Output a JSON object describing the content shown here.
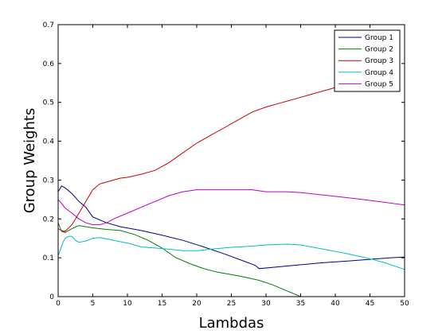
{
  "chart_data": {
    "type": "line",
    "title": "",
    "xlabel": "Lambdas",
    "ylabel": "Group Weights",
    "xlim": [
      0,
      50
    ],
    "ylim": [
      0,
      0.7
    ],
    "xticks": [
      0,
      5,
      10,
      15,
      20,
      25,
      30,
      35,
      40,
      45,
      50
    ],
    "yticks": [
      0,
      0.1,
      0.2,
      0.3,
      0.4,
      0.5,
      0.6,
      0.7
    ],
    "xtick_labels": [
      "0",
      "5",
      "10",
      "15",
      "20",
      "25",
      "30",
      "35",
      "40",
      "45",
      "50"
    ],
    "ytick_labels": [
      "0",
      "0.1",
      "0.2",
      "0.3",
      "0.4",
      "0.5",
      "0.6",
      "0.7"
    ],
    "grid": false,
    "legend_position": "top-right",
    "series": [
      {
        "name": "Group 1",
        "color": "#00008b",
        "x": [
          0,
          0.5,
          1,
          2,
          3,
          4,
          5,
          7,
          9,
          12,
          15,
          18,
          21,
          24,
          27,
          28.5,
          29,
          32,
          35,
          38,
          42,
          45,
          48,
          50
        ],
        "y": [
          0.27,
          0.285,
          0.28,
          0.265,
          0.245,
          0.23,
          0.205,
          0.19,
          0.18,
          0.17,
          0.158,
          0.145,
          0.128,
          0.11,
          0.09,
          0.08,
          0.072,
          0.077,
          0.082,
          0.087,
          0.092,
          0.096,
          0.1,
          0.102
        ]
      },
      {
        "name": "Group 2",
        "color": "#008000",
        "x": [
          0,
          0.5,
          1,
          2,
          3,
          4,
          5,
          7,
          9,
          11,
          13,
          15,
          17,
          19,
          21,
          23,
          25,
          27,
          29,
          31,
          33,
          35,
          40,
          45,
          50
        ],
        "y": [
          0.19,
          0.168,
          0.165,
          0.175,
          0.183,
          0.18,
          0.177,
          0.173,
          0.17,
          0.16,
          0.145,
          0.125,
          0.1,
          0.085,
          0.072,
          0.063,
          0.057,
          0.05,
          0.042,
          0.03,
          0.015,
          0.0,
          0.0,
          0.0,
          0.0
        ]
      },
      {
        "name": "Group 3",
        "color": "#cc0000",
        "x": [
          0,
          0.5,
          1,
          2,
          3,
          4,
          5,
          6,
          7,
          8,
          9,
          10,
          12,
          14,
          16,
          18,
          20,
          22,
          24,
          26,
          28,
          30,
          32,
          34,
          36,
          38,
          40,
          41
        ],
        "y": [
          0.175,
          0.17,
          0.168,
          0.185,
          0.215,
          0.245,
          0.275,
          0.29,
          0.295,
          0.3,
          0.305,
          0.307,
          0.315,
          0.325,
          0.345,
          0.37,
          0.395,
          0.415,
          0.435,
          0.455,
          0.475,
          0.488,
          0.498,
          0.508,
          0.518,
          0.528,
          0.538,
          0.543
        ]
      },
      {
        "name": "Group 4",
        "color": "#00bfbf",
        "x": [
          0,
          0.3,
          0.7,
          1,
          1.5,
          2,
          2.5,
          3,
          4,
          5,
          6,
          8,
          10,
          12,
          14,
          16,
          18,
          20,
          22,
          25,
          28,
          30,
          33,
          35,
          38,
          41,
          44,
          47,
          50
        ],
        "y": [
          0.105,
          0.12,
          0.14,
          0.15,
          0.155,
          0.155,
          0.145,
          0.14,
          0.143,
          0.15,
          0.152,
          0.145,
          0.138,
          0.128,
          0.125,
          0.122,
          0.118,
          0.118,
          0.122,
          0.127,
          0.13,
          0.133,
          0.135,
          0.133,
          0.123,
          0.113,
          0.102,
          0.088,
          0.07
        ]
      },
      {
        "name": "Group 5",
        "color": "#bf00bf",
        "x": [
          0,
          0.5,
          1,
          2,
          3,
          4,
          5,
          6,
          7,
          8,
          10,
          12,
          14,
          16,
          18,
          20,
          22,
          25,
          28,
          30,
          33,
          35,
          38,
          41,
          44,
          47,
          50
        ],
        "y": [
          0.25,
          0.24,
          0.228,
          0.215,
          0.2,
          0.19,
          0.185,
          0.185,
          0.19,
          0.2,
          0.215,
          0.23,
          0.245,
          0.26,
          0.27,
          0.275,
          0.275,
          0.275,
          0.275,
          0.27,
          0.27,
          0.268,
          0.262,
          0.256,
          0.25,
          0.243,
          0.236
        ]
      }
    ]
  }
}
